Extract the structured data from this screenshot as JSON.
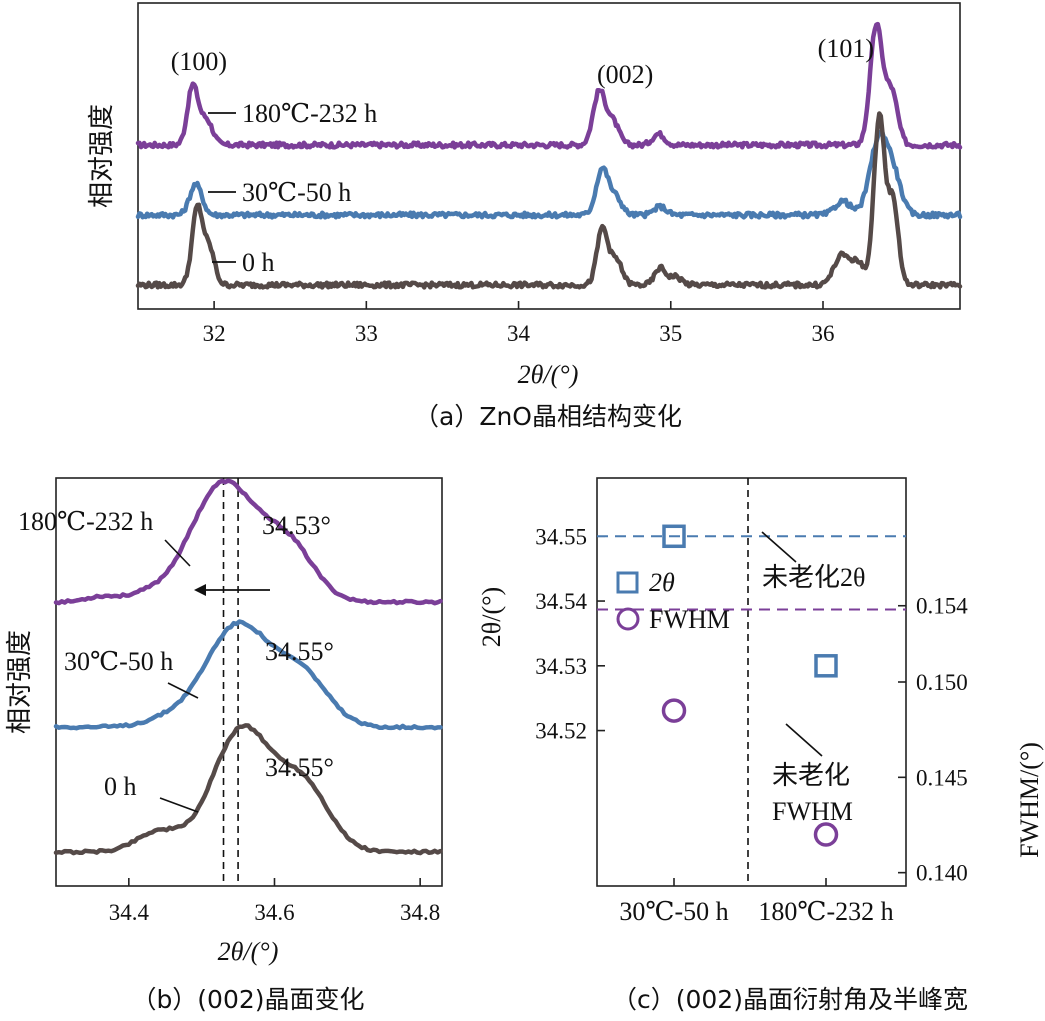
{
  "colors": {
    "purple": "#7b3f98",
    "blue": "#4a7bb0",
    "brown": "#554a48",
    "black": "#111111"
  },
  "chart_data": [
    {
      "type": "line",
      "caption": "（a）ZnO晶相结构变化",
      "xlabel": "2θ/(°)",
      "ylabel": "相对强度",
      "xlim": [
        31.5,
        36.9
      ],
      "xticks": [
        "32",
        "33",
        "34",
        "35",
        "36"
      ],
      "peak_labels": [
        {
          "text": "(100)",
          "x": 31.9
        },
        {
          "text": "(002)",
          "x": 34.7
        },
        {
          "text": "(101)",
          "x": 36.15
        }
      ],
      "series": [
        {
          "name": "180℃-232 h",
          "color": "#7b3f98",
          "baseline": 1.0,
          "peaks": [
            [
              31.86,
              0.42,
              0.035
            ],
            [
              31.95,
              0.18,
              0.04
            ],
            [
              34.53,
              0.38,
              0.04
            ],
            [
              34.62,
              0.16,
              0.04
            ],
            [
              34.92,
              0.08,
              0.04
            ],
            [
              36.35,
              0.85,
              0.04
            ],
            [
              36.45,
              0.38,
              0.04
            ]
          ]
        },
        {
          "name": "30℃-50 h",
          "color": "#4a7bb0",
          "baseline": 0.5,
          "peaks": [
            [
              31.88,
              0.22,
              0.04
            ],
            [
              34.55,
              0.33,
              0.04
            ],
            [
              34.64,
              0.12,
              0.04
            ],
            [
              34.93,
              0.06,
              0.04
            ],
            [
              36.13,
              0.1,
              0.05
            ],
            [
              36.37,
              0.55,
              0.06
            ],
            [
              36.47,
              0.22,
              0.05
            ]
          ]
        },
        {
          "name": "0 h",
          "color": "#554a48",
          "baseline": 0.0,
          "peaks": [
            [
              31.89,
              0.55,
              0.035
            ],
            [
              31.97,
              0.25,
              0.035
            ],
            [
              34.55,
              0.4,
              0.035
            ],
            [
              34.64,
              0.18,
              0.04
            ],
            [
              34.93,
              0.12,
              0.035
            ],
            [
              35.03,
              0.06,
              0.04
            ],
            [
              36.12,
              0.2,
              0.05
            ],
            [
              36.23,
              0.15,
              0.05
            ],
            [
              36.37,
              1.2,
              0.035
            ],
            [
              36.46,
              0.6,
              0.035
            ]
          ]
        }
      ]
    },
    {
      "type": "line",
      "caption": "（b）(002)晶面变化",
      "xlabel": "2θ/(°)",
      "ylabel": "相对强度",
      "xlim": [
        34.3,
        34.83
      ],
      "xticks": [
        "34.4",
        "34.6",
        "34.8"
      ],
      "reference_lines": [
        34.53,
        34.55
      ],
      "series": [
        {
          "name": "180℃-232 h",
          "peak_label": "34.53°",
          "color": "#7b3f98",
          "baseline": 2.0,
          "peaks": [
            [
              34.53,
              0.95,
              0.045
            ],
            [
              34.62,
              0.42,
              0.035
            ],
            [
              34.42,
              0.05,
              0.03
            ],
            [
              34.36,
              0.04,
              0.02
            ]
          ]
        },
        {
          "name": "30℃-50 h",
          "peak_label": "34.55°",
          "color": "#4a7bb0",
          "baseline": 1.0,
          "peaks": [
            [
              34.55,
              0.82,
              0.045
            ],
            [
              34.64,
              0.38,
              0.035
            ],
            [
              34.45,
              0.05,
              0.03
            ]
          ]
        },
        {
          "name": "0 h",
          "peak_label": "34.55°",
          "color": "#554a48",
          "baseline": 0.0,
          "peaks": [
            [
              34.555,
              0.98,
              0.04
            ],
            [
              34.64,
              0.52,
              0.035
            ],
            [
              34.44,
              0.16,
              0.03
            ]
          ]
        }
      ]
    },
    {
      "type": "scatter",
      "caption": "（c）(002)晶面衍射角及半峰宽",
      "categories": [
        "30℃-50 h",
        "180℃-232 h"
      ],
      "ylabel_left": "2θ/(°)",
      "ylabel_right": "FWHM/(°)",
      "ylim_left": [
        34.496,
        34.559
      ],
      "ylim_right": [
        0.1393,
        0.1607
      ],
      "yticks_left": [
        "34.52",
        "34.53",
        "34.54",
        "34.55"
      ],
      "yticks_right": [
        "0.140",
        "0.145",
        "0.150",
        "0.154"
      ],
      "series": [
        {
          "name": "2θ",
          "marker": "square",
          "color": "#4a7bb0",
          "values": [
            34.55,
            34.53
          ]
        },
        {
          "name": "FWHM",
          "marker": "circle",
          "color": "#7b3f98",
          "values": [
            0.1485,
            0.142
          ]
        }
      ],
      "reference_lines": [
        {
          "label": "未老化2θ",
          "value": 34.55,
          "axis": "left",
          "color": "#4a7bb0"
        },
        {
          "label_line1": "未老化",
          "label_line2": "FWHM",
          "value": 0.1538,
          "axis": "right",
          "color": "#7b3f98"
        }
      ]
    }
  ]
}
